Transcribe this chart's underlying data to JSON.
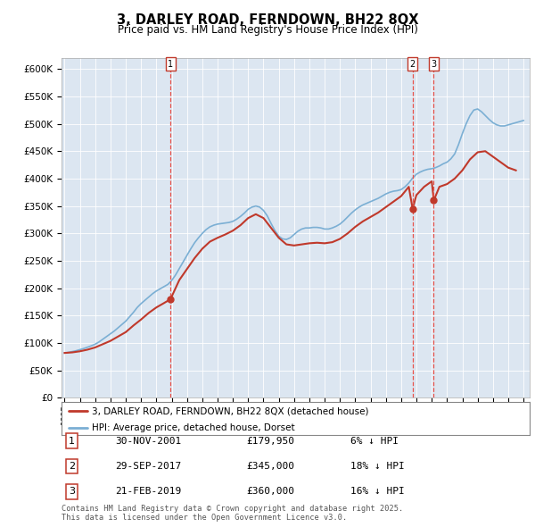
{
  "title": "3, DARLEY ROAD, FERNDOWN, BH22 8QX",
  "subtitle": "Price paid vs. HM Land Registry's House Price Index (HPI)",
  "ylim": [
    0,
    620000
  ],
  "yticks": [
    0,
    50000,
    100000,
    150000,
    200000,
    250000,
    300000,
    350000,
    400000,
    450000,
    500000,
    550000,
    600000
  ],
  "background_color": "#dce6f1",
  "legend_label_red": "3, DARLEY ROAD, FERNDOWN, BH22 8QX (detached house)",
  "legend_label_blue": "HPI: Average price, detached house, Dorset",
  "transactions": [
    {
      "num": 1,
      "date": "30-NOV-2001",
      "price": 179950,
      "rel": "6% ↓ HPI",
      "year": 2001.92
    },
    {
      "num": 2,
      "date": "29-SEP-2017",
      "price": 345000,
      "rel": "18% ↓ HPI",
      "year": 2017.75
    },
    {
      "num": 3,
      "date": "21-FEB-2019",
      "price": 360000,
      "rel": "16% ↓ HPI",
      "year": 2019.13
    }
  ],
  "footer1": "Contains HM Land Registry data © Crown copyright and database right 2025.",
  "footer2": "This data is licensed under the Open Government Licence v3.0.",
  "hpi_color": "#7bafd4",
  "price_color": "#c0392b",
  "vline_color": "#e8524a",
  "hpi_x": [
    1995.0,
    1995.25,
    1995.5,
    1995.75,
    1996.0,
    1996.25,
    1996.5,
    1996.75,
    1997.0,
    1997.25,
    1997.5,
    1997.75,
    1998.0,
    1998.25,
    1998.5,
    1998.75,
    1999.0,
    1999.25,
    1999.5,
    1999.75,
    2000.0,
    2000.25,
    2000.5,
    2000.75,
    2001.0,
    2001.25,
    2001.5,
    2001.75,
    2002.0,
    2002.25,
    2002.5,
    2002.75,
    2003.0,
    2003.25,
    2003.5,
    2003.75,
    2004.0,
    2004.25,
    2004.5,
    2004.75,
    2005.0,
    2005.25,
    2005.5,
    2005.75,
    2006.0,
    2006.25,
    2006.5,
    2006.75,
    2007.0,
    2007.25,
    2007.5,
    2007.75,
    2008.0,
    2008.25,
    2008.5,
    2008.75,
    2009.0,
    2009.25,
    2009.5,
    2009.75,
    2010.0,
    2010.25,
    2010.5,
    2010.75,
    2011.0,
    2011.25,
    2011.5,
    2011.75,
    2012.0,
    2012.25,
    2012.5,
    2012.75,
    2013.0,
    2013.25,
    2013.5,
    2013.75,
    2014.0,
    2014.25,
    2014.5,
    2014.75,
    2015.0,
    2015.25,
    2015.5,
    2015.75,
    2016.0,
    2016.25,
    2016.5,
    2016.75,
    2017.0,
    2017.25,
    2017.5,
    2017.75,
    2018.0,
    2018.25,
    2018.5,
    2018.75,
    2019.0,
    2019.25,
    2019.5,
    2019.75,
    2020.0,
    2020.25,
    2020.5,
    2020.75,
    2021.0,
    2021.25,
    2021.5,
    2021.75,
    2022.0,
    2022.25,
    2022.5,
    2022.75,
    2023.0,
    2023.25,
    2023.5,
    2023.75,
    2024.0,
    2024.25,
    2024.5,
    2024.75,
    2025.0
  ],
  "hpi_y": [
    82000,
    83000,
    84500,
    86000,
    88000,
    90000,
    92500,
    95000,
    98000,
    102000,
    107000,
    112000,
    117000,
    122000,
    128000,
    134000,
    140000,
    148000,
    156000,
    165000,
    172000,
    178000,
    184000,
    190000,
    195000,
    199000,
    203000,
    207000,
    214000,
    224000,
    236000,
    248000,
    260000,
    272000,
    283000,
    292000,
    300000,
    307000,
    312000,
    315000,
    317000,
    318000,
    319000,
    320000,
    322000,
    326000,
    331000,
    337000,
    344000,
    348000,
    350000,
    348000,
    342000,
    332000,
    318000,
    305000,
    295000,
    290000,
    289000,
    292000,
    298000,
    304000,
    308000,
    310000,
    310000,
    311000,
    311000,
    310000,
    308000,
    308000,
    310000,
    313000,
    317000,
    323000,
    330000,
    337000,
    343000,
    348000,
    352000,
    355000,
    358000,
    361000,
    364000,
    368000,
    372000,
    375000,
    377000,
    378000,
    380000,
    385000,
    392000,
    401000,
    408000,
    412000,
    415000,
    417000,
    418000,
    420000,
    423000,
    427000,
    430000,
    436000,
    445000,
    462000,
    482000,
    500000,
    515000,
    525000,
    527000,
    522000,
    515000,
    508000,
    502000,
    498000,
    496000,
    496000,
    498000,
    500000,
    502000,
    504000,
    506000
  ],
  "price_x": [
    1995.0,
    1995.5,
    1996.0,
    1996.5,
    1997.0,
    1997.5,
    1998.0,
    1998.5,
    1999.0,
    1999.5,
    2000.0,
    2000.5,
    2001.0,
    2001.5,
    2001.92,
    2002.5,
    2003.0,
    2003.5,
    2004.0,
    2004.5,
    2005.0,
    2005.5,
    2006.0,
    2006.5,
    2007.0,
    2007.5,
    2008.0,
    2008.5,
    2009.0,
    2009.5,
    2010.0,
    2010.5,
    2011.0,
    2011.5,
    2012.0,
    2012.5,
    2013.0,
    2013.5,
    2014.0,
    2014.5,
    2015.0,
    2015.5,
    2016.0,
    2016.5,
    2017.0,
    2017.5,
    2017.75,
    2018.0,
    2018.5,
    2019.0,
    2019.13,
    2019.5,
    2020.0,
    2020.5,
    2021.0,
    2021.5,
    2022.0,
    2022.5,
    2023.0,
    2023.5,
    2024.0,
    2024.5
  ],
  "price_y": [
    82000,
    83000,
    85000,
    88000,
    92000,
    98000,
    104000,
    112000,
    120000,
    132000,
    143000,
    155000,
    165000,
    173000,
    179950,
    215000,
    235000,
    255000,
    272000,
    285000,
    292000,
    298000,
    305000,
    315000,
    328000,
    335000,
    328000,
    310000,
    292000,
    280000,
    278000,
    280000,
    282000,
    283000,
    282000,
    284000,
    290000,
    300000,
    312000,
    322000,
    330000,
    338000,
    348000,
    358000,
    368000,
    385000,
    345000,
    370000,
    385000,
    395000,
    360000,
    385000,
    390000,
    400000,
    415000,
    435000,
    448000,
    450000,
    440000,
    430000,
    420000,
    415000
  ]
}
